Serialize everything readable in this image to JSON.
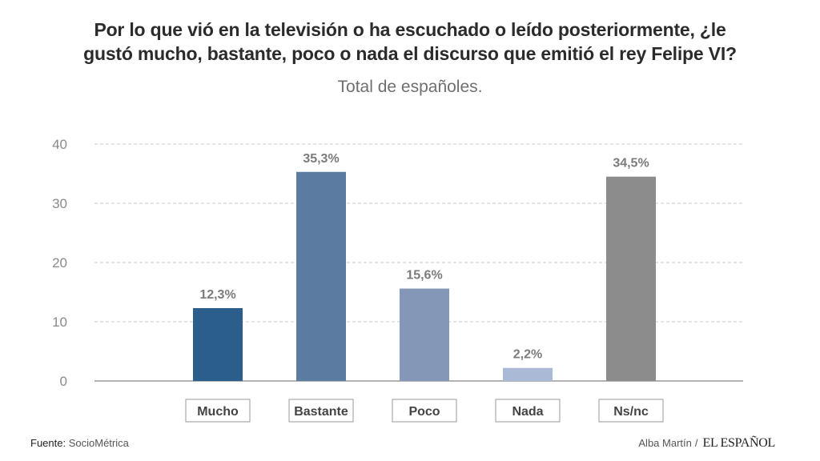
{
  "header": {
    "title_line1": "Por lo que vió en la televisión o ha escuchado o leído posteriormente, ¿le",
    "title_line2": "gustó mucho, bastante, poco o nada el discurso que emitió el rey Felipe VI?",
    "subtitle": "Total de españoles."
  },
  "chart_data": {
    "type": "bar",
    "title": "Por lo que vió en la televisión o ha escuchado o leído posteriormente, ¿le gustó mucho, bastante, poco o nada el discurso que emitió el rey Felipe VI?",
    "subtitle": "Total de españoles.",
    "categories": [
      "Mucho",
      "Bastante",
      "Poco",
      "Nada",
      "Ns/nc"
    ],
    "values": [
      12.3,
      35.3,
      15.6,
      2.2,
      34.5
    ],
    "labels": [
      "12,3%",
      "35,3%",
      "15,6%",
      "2,2%",
      "34,5%"
    ],
    "colors": [
      "#2c5e8c",
      "#5b7ba0",
      "#8497b7",
      "#a9b9d6",
      "#8c8c8c"
    ],
    "ylim": [
      0,
      40
    ],
    "yticks": [
      0,
      10,
      20,
      30,
      40
    ],
    "xlabel": "",
    "ylabel": "",
    "grid": true
  },
  "footer": {
    "source_label": "Fuente:",
    "source_value": "SocioMétrica",
    "author": "Alba Martín",
    "separator": "/",
    "brand": "EL ESPAÑOL"
  }
}
